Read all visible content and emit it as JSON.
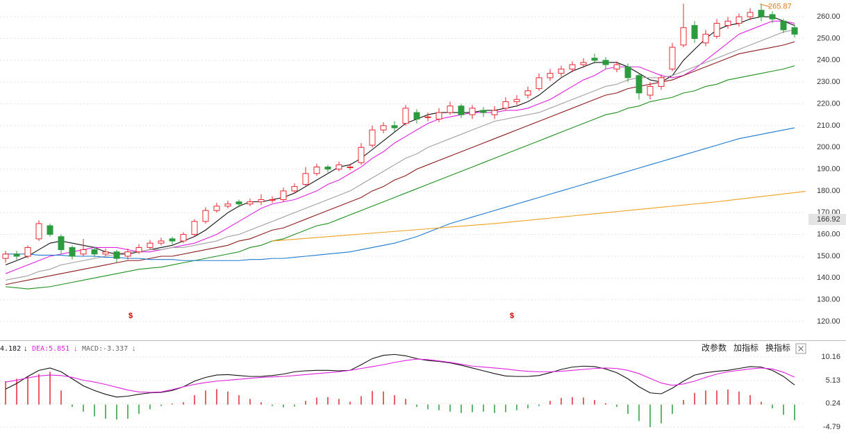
{
  "chart_data": [
    {
      "type": "candlestick",
      "open": [
        149,
        151,
        150,
        158,
        164,
        159,
        154,
        151,
        153,
        151,
        152,
        150,
        152,
        154,
        156,
        158,
        157,
        160,
        166,
        171,
        173,
        175,
        174,
        175,
        176,
        176,
        180,
        183,
        188,
        191,
        190,
        191,
        193,
        201,
        208,
        210,
        211,
        216,
        214,
        213,
        216,
        219,
        215,
        217,
        215,
        218,
        221,
        224,
        227,
        232,
        234,
        236,
        238,
        241,
        240,
        236,
        237,
        233,
        224,
        228,
        236,
        247,
        256,
        248,
        251,
        256,
        257,
        260,
        263,
        261,
        258,
        255
      ],
      "high": [
        152.5,
        152.5,
        155,
        166.5,
        165,
        160,
        155,
        158,
        154.5,
        153.5,
        153,
        153.5,
        155.5,
        157.5,
        158.5,
        159,
        161,
        167,
        172.5,
        174.5,
        175.5,
        176,
        176.5,
        178.5,
        177.5,
        181.5,
        183.5,
        191,
        192.5,
        192,
        193.5,
        192.5,
        202,
        210,
        211.5,
        212,
        219.5,
        217.5,
        216,
        218,
        221,
        220,
        219.5,
        218.5,
        219,
        223,
        224,
        228,
        234,
        236,
        237.5,
        239.5,
        241,
        243,
        241.5,
        239.5,
        238.5,
        234,
        230,
        233.5,
        248,
        266,
        258,
        254,
        259,
        260,
        261.5,
        264,
        265.87,
        262.5,
        259,
        256.5
      ],
      "low": [
        147,
        148.5,
        149,
        157,
        159,
        151,
        148.5,
        150,
        149.5,
        150,
        147,
        148.5,
        151,
        153,
        155,
        155.5,
        156,
        159,
        165,
        170,
        172,
        172.5,
        173,
        173.5,
        174.5,
        175,
        179,
        182,
        187,
        188.5,
        189,
        189.5,
        192,
        200,
        206.5,
        207,
        210,
        211,
        212,
        211.5,
        215,
        213.5,
        213,
        214,
        213,
        217,
        219.5,
        222.5,
        226,
        230.5,
        232.5,
        234.5,
        236.5,
        238.5,
        236,
        234.5,
        230,
        222,
        222,
        226.5,
        235,
        246,
        248,
        246.5,
        250,
        254.5,
        255.5,
        258.5,
        258,
        257,
        252.5,
        250.5
      ],
      "close": [
        151,
        150,
        154,
        165,
        160,
        153,
        150,
        153,
        151,
        152,
        149,
        152,
        154,
        156,
        157,
        157,
        160,
        166,
        171,
        173,
        174,
        174,
        175,
        176,
        176,
        180,
        182,
        188,
        191,
        190,
        192,
        191,
        200,
        208,
        210,
        209,
        218,
        213,
        214,
        216,
        219,
        215,
        218,
        216,
        217,
        221,
        222,
        226,
        232,
        234,
        236,
        238,
        239,
        240,
        238,
        238,
        232,
        225,
        228,
        232,
        246,
        255,
        250,
        252,
        257,
        258,
        260,
        262,
        260,
        259,
        254,
        252
      ],
      "up_color": "#e8262f",
      "down_color": "#2b9b3e",
      "series": [
        {
          "color": "#111111",
          "values": [
            146,
            148,
            150,
            153,
            156,
            157,
            156,
            155,
            154,
            152,
            151,
            151,
            152,
            153,
            154,
            155,
            157,
            159,
            162,
            166,
            170,
            173,
            175,
            175,
            176,
            177,
            179,
            182,
            185,
            188,
            191,
            192,
            195,
            199,
            203,
            207,
            211,
            213,
            215,
            216,
            216,
            216,
            216,
            217,
            217,
            218,
            219,
            221,
            224,
            228,
            232,
            235,
            237,
            239,
            239,
            239,
            237,
            234,
            231,
            230,
            233,
            240,
            245,
            250,
            254,
            256,
            257,
            259,
            260,
            260,
            258,
            256
          ]
        },
        {
          "color": "#e020e0",
          "values": [
            142,
            144,
            146,
            148,
            150,
            151,
            152,
            153,
            154,
            154,
            154,
            153,
            152,
            152,
            153,
            154,
            155,
            156,
            158,
            160,
            163,
            166,
            169,
            172,
            174,
            175,
            176,
            178,
            180,
            183,
            185,
            188,
            191,
            195,
            198,
            202,
            205,
            208,
            211,
            213,
            214,
            215,
            216,
            216,
            216,
            217,
            217,
            218,
            220,
            222,
            225,
            228,
            231,
            233,
            236,
            237,
            237,
            237,
            235,
            233,
            232,
            233,
            236,
            240,
            244,
            248,
            252,
            254,
            256,
            258,
            258,
            257
          ]
        },
        {
          "color": "#a0a0a0",
          "values": [
            139,
            140,
            141,
            143,
            144,
            146,
            147,
            148,
            149,
            150,
            151,
            152,
            152,
            153,
            153,
            154,
            154,
            155,
            156,
            157,
            159,
            160,
            162,
            164,
            166,
            168,
            170,
            172,
            174,
            176,
            178,
            180,
            183,
            186,
            189,
            192,
            195,
            197,
            200,
            202,
            204,
            206,
            208,
            210,
            212,
            213,
            214,
            215,
            216,
            218,
            220,
            222,
            224,
            226,
            228,
            229,
            231,
            232,
            232,
            232,
            233,
            235,
            237,
            239,
            241,
            243,
            245,
            247,
            249,
            251,
            253,
            254
          ]
        },
        {
          "color": "#8b1a1a",
          "values": [
            137,
            138,
            139,
            140,
            141,
            142,
            143,
            144,
            145,
            146,
            147,
            148,
            148,
            149,
            150,
            150,
            151,
            152,
            153,
            154,
            155,
            157,
            158,
            160,
            162,
            163,
            165,
            167,
            169,
            171,
            173,
            175,
            177,
            180,
            182,
            185,
            187,
            190,
            192,
            194,
            196,
            198,
            200,
            202,
            204,
            206,
            208,
            210,
            212,
            214,
            216,
            218,
            220,
            222,
            224,
            225,
            227,
            228,
            229,
            230,
            231,
            233,
            235,
            237,
            239,
            241,
            243,
            244,
            245,
            246,
            247,
            248.5
          ]
        },
        {
          "color": "#1f8f1f",
          "values": [
            136,
            135.5,
            135,
            135.5,
            136,
            137,
            138,
            139,
            140,
            141,
            142,
            143,
            144,
            144.5,
            145,
            146,
            147,
            148,
            149,
            150,
            151,
            152,
            154,
            155,
            157,
            158,
            160,
            162,
            164,
            165,
            167,
            169,
            171,
            173,
            175,
            177,
            179,
            181,
            183,
            185,
            187,
            189,
            191,
            193,
            195,
            197,
            199,
            201,
            203,
            205,
            207,
            209,
            211,
            213,
            215,
            216,
            218,
            219,
            221,
            222,
            223,
            225,
            226,
            228,
            229,
            231,
            232,
            233,
            234,
            235,
            236,
            237.5
          ]
        },
        {
          "color": "#1c78d0",
          "values": [
            151,
            151,
            151,
            150.5,
            150.5,
            150.5,
            150,
            150,
            150,
            149.5,
            149.5,
            149,
            149,
            148.5,
            148.5,
            148.5,
            148,
            148,
            148,
            148,
            148,
            148,
            148.5,
            148.5,
            149,
            149,
            149.5,
            150,
            150.5,
            151,
            151.5,
            152,
            153,
            154,
            155,
            156,
            157.5,
            159,
            161,
            163,
            165,
            166.5,
            168,
            169.5,
            171,
            172.5,
            174,
            175.5,
            177,
            178.5,
            180,
            181.5,
            183,
            184.5,
            186,
            187.5,
            189,
            190.5,
            192,
            193.5,
            195,
            196.5,
            198,
            199.5,
            201,
            202.5,
            204,
            205,
            206,
            207,
            208,
            209
          ]
        },
        {
          "color": "#f0a020",
          "values": [
            null,
            null,
            null,
            null,
            null,
            null,
            null,
            null,
            null,
            null,
            null,
            null,
            null,
            null,
            null,
            null,
            null,
            null,
            null,
            null,
            null,
            null,
            null,
            null,
            157,
            157.4,
            157.8,
            158.2,
            158.6,
            159,
            159.4,
            159.8,
            160.2,
            160.6,
            161,
            161.4,
            161.8,
            162.2,
            162.6,
            163,
            163.4,
            163.8,
            164.2,
            164.6,
            165,
            165.5,
            166,
            166.5,
            167,
            167.5,
            168,
            168.5,
            169,
            169.5,
            170,
            170.5,
            171,
            171.5,
            172,
            172.5,
            173,
            173.5,
            174,
            174.5,
            175,
            175.6,
            176.2,
            176.8,
            177.4,
            178,
            178.6,
            179.2,
            179.8
          ]
        }
      ],
      "ylim": [
        111.4,
        267.7
      ],
      "yticks": [
        120,
        130,
        140,
        150,
        160,
        170,
        180,
        190,
        200,
        210,
        220,
        230,
        240,
        250,
        260
      ],
      "yticks_labels": [
        "120.00",
        "130.00",
        "140.00",
        "150.00",
        "160.00",
        "170.00",
        "180.00",
        "190.00",
        "200.00",
        "210.00",
        "220.00",
        "230.00",
        "240.00",
        "250.00",
        "260.00"
      ],
      "grid": true,
      "price_marker": 166.92,
      "max_label": 265.87,
      "annotations": [
        "$",
        "$"
      ]
    },
    {
      "type": "macd",
      "dif": [
        3.3,
        4.5,
        6,
        7.3,
        7.8,
        7,
        5.5,
        4,
        3,
        2.2,
        1.6,
        1.8,
        2.2,
        2.5,
        2.6,
        3,
        3.8,
        5,
        5.8,
        6.3,
        6.4,
        6.2,
        6,
        6,
        6.2,
        6.5,
        7,
        7.2,
        7.3,
        7.3,
        7.2,
        7.3,
        8.5,
        9.8,
        10.5,
        10.7,
        10.4,
        9.8,
        9.4,
        9.2,
        8.9,
        8.4,
        7.8,
        7.2,
        6.6,
        6.1,
        6,
        6,
        6.2,
        6.8,
        7.5,
        8,
        8.2,
        8.1,
        7.6,
        6.8,
        5.5,
        3.8,
        2.5,
        2.3,
        3.5,
        5,
        6.3,
        6.8,
        7.1,
        7.3,
        7.7,
        8.1,
        8,
        7.3,
        6,
        4.182
      ],
      "dea": [
        4.8,
        5.2,
        5.7,
        6.1,
        6.3,
        6.2,
        5.8,
        5.2,
        4.8,
        4.3,
        3.7,
        3.1,
        2.7,
        2.6,
        2.7,
        3.2,
        3.8,
        4.3,
        4.7,
        5,
        5.2,
        5.4,
        5.6,
        5.8,
        5.9,
        6,
        6.2,
        6.4,
        6.6,
        6.8,
        7,
        7.3,
        7.7,
        8.1,
        8.5,
        9,
        9.4,
        9.7,
        9.6,
        9.3,
        9,
        8.6,
        8.2,
        8,
        7.8,
        7.6,
        7.3,
        7.1,
        7,
        7,
        7.1,
        7.3,
        7.5,
        7.7,
        7.8,
        7.7,
        7.3,
        6.6,
        5.6,
        4.6,
        4.1,
        4.4,
        5,
        5.8,
        6.5,
        7,
        7.3,
        7.6,
        7.8,
        7.6,
        6.9,
        5.851
      ],
      "hist": [
        5,
        5.5,
        6,
        6.5,
        7,
        3,
        -0.5,
        -1.5,
        -2.5,
        -3,
        -3.2,
        -3,
        -2,
        -1,
        -0.3,
        0.2,
        0.5,
        2,
        3,
        3.3,
        2.8,
        2,
        1.2,
        0.5,
        -0.3,
        -0.6,
        -0.4,
        0.8,
        1.5,
        1.6,
        1.2,
        0.6,
        1.8,
        2.9,
        2.8,
        2,
        1.2,
        -0.5,
        -1,
        -1.2,
        -1.5,
        -1.8,
        -1.6,
        -1.5,
        -1.8,
        -1.6,
        -1.2,
        -0.8,
        -0.3,
        0.8,
        1.4,
        1.6,
        1.5,
        1,
        0.3,
        -0.5,
        -2,
        -3.5,
        -4.8,
        -4,
        -2,
        1,
        2.5,
        3,
        3,
        3.2,
        2.8,
        2,
        0.6,
        -0.8,
        -2.2,
        -3.337
      ],
      "dif_color": "#111111",
      "dea_color": "#e020e0",
      "up_color": "#e8262f",
      "down_color": "#2b9b3e",
      "ylim": [
        -6.27,
        13.42
      ],
      "yticks": [
        10.16,
        5.13,
        0.24,
        -4.79
      ],
      "grid": true,
      "legend": [
        {
          "text": "4.182",
          "arrow": "↓",
          "color": "#111111"
        },
        {
          "text": "DEA:5.851",
          "arrow": "↓",
          "color": "#e020e0"
        },
        {
          "text": "MACD:-3.337",
          "arrow": "↓",
          "color": "#666666"
        }
      ],
      "buttons": [
        "改参数",
        "加指标",
        "换指标"
      ]
    }
  ]
}
